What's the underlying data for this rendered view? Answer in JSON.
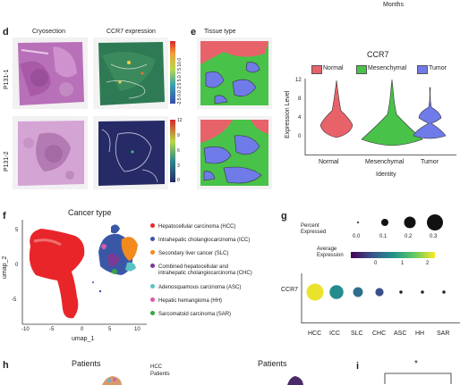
{
  "top_right_text": "Months",
  "panel_d": {
    "label": "d",
    "col_titles": [
      "Cryosection",
      "CCR7 expression"
    ],
    "row_labels": [
      "P131-1",
      "P131-2"
    ],
    "scale1_ticks": [
      "-2.5",
      "0.0",
      "2.5",
      "5.0",
      "7.5",
      "10.0"
    ],
    "scale2_ticks": [
      "0",
      "3",
      "6",
      "9",
      "12"
    ]
  },
  "panel_e": {
    "label": "e",
    "title": "Tissue type",
    "colors": {
      "normal": "#e8626a",
      "mesenchymal": "#49c24a",
      "tumor": "#6f7be8"
    },
    "violin": {
      "title": "CCR7",
      "legend": [
        "Normal",
        "Mesenchymal",
        "Tumor"
      ],
      "ylabel": "Expression Level",
      "xlabel": "Identity",
      "yticks": [
        "0",
        "4",
        "8",
        "12"
      ]
    }
  },
  "panel_f": {
    "label": "f",
    "title": "Cancer type",
    "xlabel": "umap_1",
    "ylabel": "umap_2",
    "xticks": [
      "-10",
      "-5",
      "0",
      "5",
      "10"
    ],
    "yticks": [
      "5",
      "0",
      "-5"
    ],
    "legend": [
      {
        "text": "Hepatocellular carcinoma (HCC)",
        "color": "#e8262a"
      },
      {
        "text": "Intrahepatic cholangiocarcinoma (ICC)",
        "color": "#3a57a7"
      },
      {
        "text": "Secondary liver cancer (SLC)",
        "color": "#f28a1e"
      },
      {
        "text": "Combined hepatocellular and",
        "text2": "intrahepatic cholangiocarcinoma (CHC)",
        "color": "#7a3a96"
      },
      {
        "text": "Adenosquamous carcinoma (ASC)",
        "color": "#58c3c4"
      },
      {
        "text": "Hepatic hemangioma (HH)",
        "color": "#d85aa8"
      },
      {
        "text": "Sarcomatoid carcinoma (SAR)",
        "color": "#3aa545"
      }
    ]
  },
  "panel_g": {
    "label": "g",
    "pct_title": "Percent\nExpressed",
    "pct_values": [
      "0.0",
      "0.1",
      "0.2",
      "0.3"
    ],
    "avg_title": "Average\nExpression",
    "avg_ticks": [
      "0",
      "1",
      "2"
    ],
    "gene": "CCR7",
    "chart_data": {
      "type": "dotplot",
      "categories": [
        "HCC",
        "ICC",
        "SLC",
        "CHC",
        "ASC",
        "HH",
        "SAR"
      ],
      "avg_expression": [
        2.2,
        0.6,
        0.2,
        -0.2,
        -0.5,
        -0.5,
        -0.5
      ],
      "percent_expressed": [
        0.3,
        0.2,
        0.1,
        0.07,
        0.01,
        0.01,
        0.01
      ]
    }
  },
  "panel_h": {
    "label": "h",
    "title_left": "Patients",
    "title_right": "Patients",
    "legend_head": "HCC",
    "legend_sub": "Patients"
  },
  "panel_i": {
    "label": "i",
    "sig": "*"
  }
}
